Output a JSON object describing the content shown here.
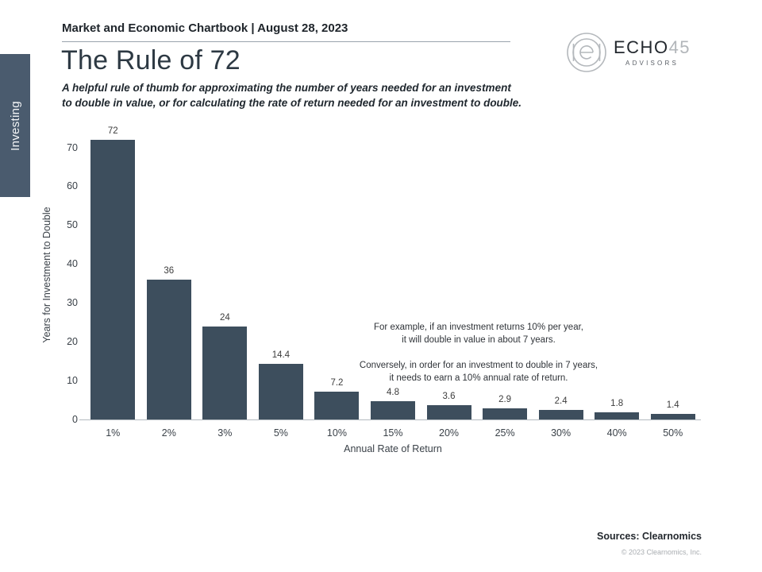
{
  "page": {
    "header": "Market and Economic Chartbook | August 28, 2023",
    "title": "The Rule of 72",
    "subtitle_line1": "A helpful rule of thumb for approximating the number of years needed for an investment",
    "subtitle_line2": "to double in value, or for calculating the rate of return needed for an investment to double.",
    "sidebar_tab": "Investing",
    "sources": "Sources: Clearnomics",
    "copyright": "© 2023 Clearnomics, Inc."
  },
  "logo": {
    "name_main": "ECHO",
    "name_accent": "45",
    "subtext": "ADVISORS"
  },
  "annotation": {
    "para1_line1": "For example, if an investment returns 10% per year,",
    "para1_line2": "it will double in value in about 7 years.",
    "para2_line1": "Conversely, in order for an investment to double in 7 years,",
    "para2_line2": "it needs to earn a 10% annual rate of return."
  },
  "colors": {
    "bar": "#3d4e5d",
    "sidebar": "#4a5b6e",
    "title": "#2d3943",
    "axis_line": "#b3bac0"
  },
  "chart_data": {
    "type": "bar",
    "categories": [
      "1%",
      "2%",
      "3%",
      "5%",
      "10%",
      "15%",
      "20%",
      "25%",
      "30%",
      "40%",
      "50%"
    ],
    "values": [
      72,
      36,
      24,
      14.4,
      7.2,
      4.8,
      3.6,
      2.9,
      2.4,
      1.8,
      1.4
    ],
    "value_labels": [
      "72",
      "36",
      "24",
      "14.4",
      "7.2",
      "4.8",
      "3.6",
      "2.9",
      "2.4",
      "1.8",
      "1.4"
    ],
    "title": "The Rule of 72",
    "xlabel": "Annual Rate of Return",
    "ylabel": "Years for Investment to Double",
    "yticks": [
      0,
      10,
      20,
      30,
      40,
      50,
      60,
      70
    ],
    "ylim": [
      0,
      74.6
    ],
    "grid": false,
    "legend": "none"
  }
}
